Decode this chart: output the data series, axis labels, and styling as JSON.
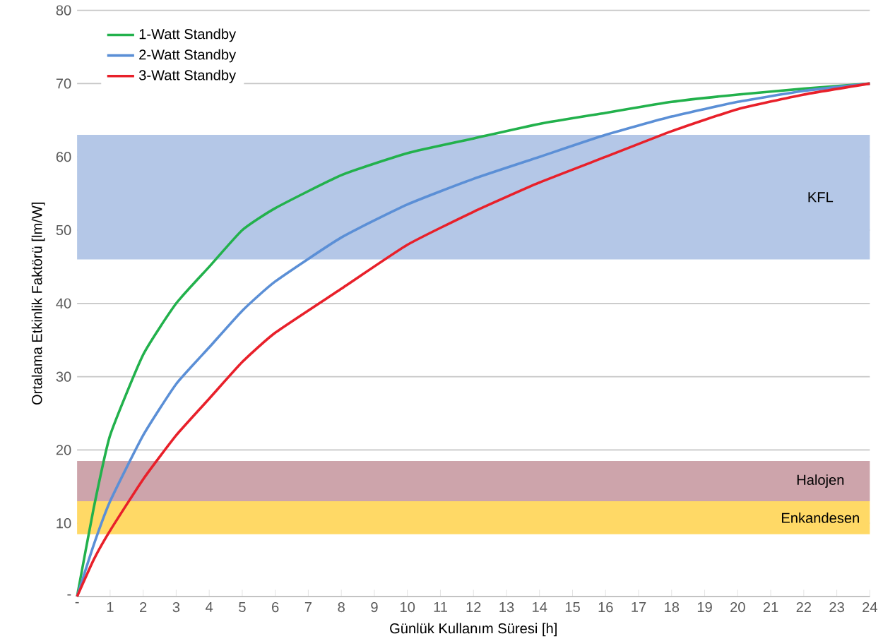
{
  "chart_data": {
    "type": "line",
    "xlabel": "Günlük Kullanım Süresi [h]",
    "ylabel": "Ortalama Etkinlik Faktörü [lm/W]",
    "x": [
      0,
      0.5,
      1,
      2,
      3,
      4,
      5,
      6,
      8,
      10,
      12,
      14,
      16,
      18,
      20,
      22,
      24
    ],
    "series": [
      {
        "name": "1-Watt Standby",
        "color": "#22b14c",
        "values": [
          0,
          12,
          22,
          33,
          40,
          45,
          50,
          53,
          57.5,
          60.5,
          62.5,
          64.5,
          66,
          67.5,
          68.5,
          69.3,
          70
        ]
      },
      {
        "name": "2-Watt Standby",
        "color": "#5b8fd6",
        "values": [
          0,
          7,
          13,
          22,
          29,
          34,
          39,
          43,
          49,
          53.5,
          57,
          60,
          63,
          65.5,
          67.5,
          69,
          70
        ]
      },
      {
        "name": "3-Watt Standby",
        "color": "#e8202a",
        "values": [
          0,
          5,
          9,
          16,
          22,
          27,
          32,
          36,
          42,
          48,
          52.5,
          56.5,
          60,
          63.5,
          66.5,
          68.5,
          70
        ]
      }
    ],
    "xlim": [
      0,
      24
    ],
    "xticks": [
      {
        "value": 0,
        "label": "-"
      },
      1,
      2,
      3,
      4,
      5,
      6,
      7,
      8,
      9,
      10,
      11,
      12,
      13,
      14,
      15,
      16,
      17,
      18,
      19,
      20,
      21,
      22,
      23,
      24
    ],
    "ylim": [
      0,
      80
    ],
    "yticks": [
      {
        "value": 0,
        "label": "-"
      },
      10,
      20,
      30,
      40,
      50,
      60,
      70,
      80
    ],
    "bands": [
      {
        "axis": "y",
        "from": 46,
        "to": 63,
        "label": "KFL",
        "color": "#b4c7e7"
      },
      {
        "axis": "y",
        "from": 13,
        "to": 18.5,
        "label": "Halojen",
        "color": "#cda4ab"
      },
      {
        "axis": "y",
        "from": 8.5,
        "to": 13,
        "label": "Enkandesen",
        "color": "#ffd966"
      }
    ],
    "grid": "y",
    "legend": "top left",
    "marker": "none",
    "line_style": "solid"
  }
}
